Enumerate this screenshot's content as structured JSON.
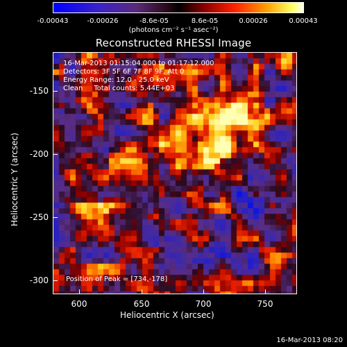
{
  "colorbar": {
    "ticks": [
      "-0.00043",
      "-0.00026",
      "-8.6e-05",
      "8.6e-05",
      "0.00026",
      "0.00043"
    ],
    "units": "(photons cm⁻² s⁻¹ asec⁻²)"
  },
  "title": "Reconstructed RHESSI Image",
  "info": {
    "time_range": "16-Mar-2013 01:15:04.000 to 01:17:12.000",
    "detectors": "Detectors: 3F 5F 6F 7F 8F 9F, Att 0",
    "energy": "Energy Range: 12.0 - 25.0 keV",
    "method": "Clean     Total counts: 5.44E+03",
    "peak": "Position of Peak = [734,-178]"
  },
  "axes": {
    "xlabel": "Heliocentric X (arcsec)",
    "ylabel": "Heliocentric Y (arcsec)",
    "xticks": [
      "600",
      "650",
      "700",
      "750"
    ],
    "yticks": [
      "-150",
      "-200",
      "-250",
      "-300"
    ]
  },
  "timestamp": "16-Mar-2013 08:20"
}
